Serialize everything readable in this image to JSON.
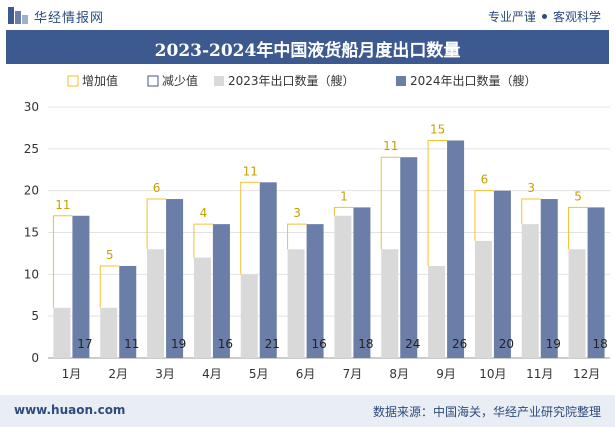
{
  "header": {
    "brand": "华经情报网",
    "tag1": "专业严谨",
    "tag2": "客观科学"
  },
  "footer": {
    "website": "www.huaon.com",
    "source": "数据来源：中国海关，华经产业研究院整理"
  },
  "colors": {
    "title_bg": "#3c5a8f",
    "series_2023": "#d9d9d9",
    "series_2024": "#6b7ea8",
    "increase": "#f2c12e",
    "decrease": "#3c5a8f"
  },
  "chart_data": {
    "type": "bar",
    "title": "2023-2024年中国液货船月度出口数量",
    "categories": [
      "1月",
      "2月",
      "3月",
      "4月",
      "5月",
      "6月",
      "7月",
      "8月",
      "9月",
      "10月",
      "11月",
      "12月"
    ],
    "series": [
      {
        "name": "2023年出口数量（艘）",
        "values": [
          6,
          6,
          13,
          12,
          10,
          13,
          17,
          13,
          11,
          14,
          16,
          13
        ]
      },
      {
        "name": "2024年出口数量（艘）",
        "values": [
          17,
          11,
          19,
          16,
          21,
          16,
          18,
          24,
          26,
          20,
          19,
          18
        ]
      }
    ],
    "changes": {
      "increase_name": "增加值",
      "decrease_name": "减少值",
      "values": [
        11,
        5,
        6,
        4,
        11,
        3,
        1,
        11,
        15,
        6,
        3,
        5
      ]
    },
    "ylim": [
      0,
      30
    ],
    "yticks": [
      0,
      5,
      10,
      15,
      20,
      25,
      30
    ],
    "grid": true,
    "legend": "top"
  }
}
